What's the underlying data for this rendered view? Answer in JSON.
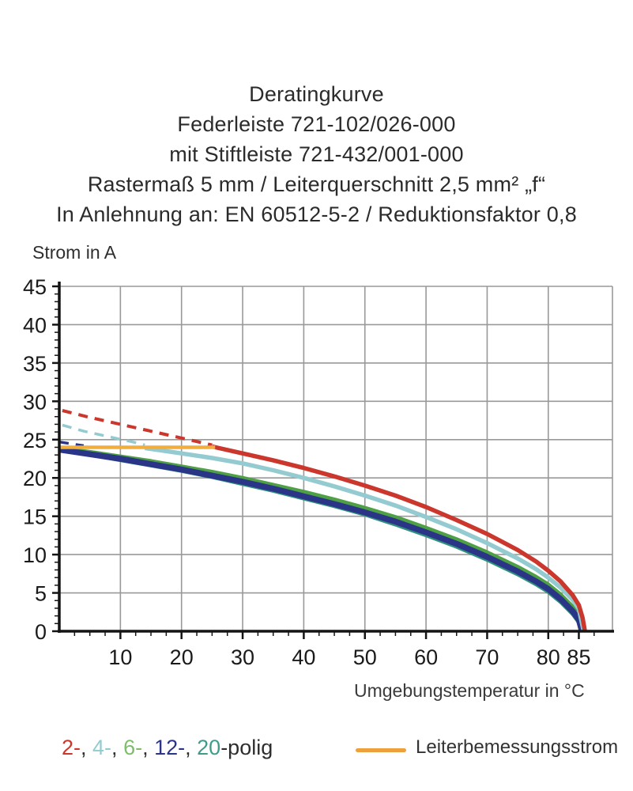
{
  "title": {
    "lines": [
      "Deratingkurve",
      "Federleiste 721-102/026-000",
      "mit Stiftleiste 721-432/001-000",
      "Rastermaß 5 mm / Leiterquerschnitt 2,5 mm² „f“",
      "In Anlehnung an: EN 60512-5-2 / Reduktionsfaktor 0,8"
    ]
  },
  "chart_data": {
    "type": "line",
    "title": "Deratingkurve",
    "xlabel": "Umgebungstemperatur in °C",
    "ylabel": "Strom in A",
    "xlim": [
      0,
      90.5
    ],
    "ylim": [
      0,
      45
    ],
    "grid": true,
    "x_gridline_step": 10,
    "y_gridline_step": 5,
    "x_ticks_major": [
      10,
      20,
      30,
      40,
      50,
      60,
      70,
      80,
      85
    ],
    "x_minor_step": 2.5,
    "y_ticks": [
      0,
      5,
      10,
      15,
      20,
      25,
      30,
      35,
      40,
      45
    ],
    "y_minor_step": 1,
    "colors": {
      "grid": "#999999",
      "axis": "#141414",
      "red_2pole": "#cb372c",
      "cyan_4pole": "#93cbd1",
      "green_6pole": "#4fa045",
      "navy_12pole": "#2a3588",
      "teal_20pole": "#2f917d",
      "orange_rated": "#f2ae3c"
    },
    "series": [
      {
        "name": "2-polig theoretisch",
        "color": "#cb372c",
        "width": 4,
        "dashed": true,
        "points": [
          [
            0.5,
            28.8
          ],
          [
            5,
            27.9
          ],
          [
            10,
            27.0
          ],
          [
            15,
            26.1
          ],
          [
            20,
            25.2
          ],
          [
            25,
            24.3
          ]
        ]
      },
      {
        "name": "4-polig theoretisch",
        "color": "#93cbd1",
        "width": 3.5,
        "dashed": true,
        "points": [
          [
            0.5,
            26.9
          ],
          [
            4,
            26.1
          ],
          [
            8,
            25.4
          ],
          [
            12,
            24.7
          ],
          [
            14,
            24.3
          ]
        ]
      },
      {
        "name": "12-polig theoretisch",
        "color": "#2a3588",
        "width": 3.5,
        "dashed": true,
        "points": [
          [
            0,
            24.7
          ],
          [
            4,
            24.2
          ]
        ]
      },
      {
        "name": "6-polig",
        "color": "#4fa045",
        "width": 5,
        "dashed": false,
        "points": [
          [
            0,
            23.9
          ],
          [
            5,
            23.4
          ],
          [
            10,
            22.8
          ],
          [
            15,
            22.2
          ],
          [
            20,
            21.5
          ],
          [
            25,
            20.8
          ],
          [
            30,
            20.0
          ],
          [
            35,
            19.1
          ],
          [
            40,
            18.2
          ],
          [
            45,
            17.2
          ],
          [
            50,
            16.1
          ],
          [
            55,
            14.9
          ],
          [
            60,
            13.5
          ],
          [
            65,
            12.0
          ],
          [
            70,
            10.3
          ],
          [
            75,
            8.4
          ],
          [
            78,
            7.1
          ],
          [
            80,
            6.1
          ],
          [
            82,
            4.8
          ],
          [
            84,
            3.2
          ],
          [
            85,
            2.1
          ],
          [
            85.6,
            0
          ]
        ]
      },
      {
        "name": "20-polig",
        "color": "#2f917d",
        "width": 4.5,
        "dashed": false,
        "points": [
          [
            0,
            23.6
          ],
          [
            5,
            23.0
          ],
          [
            10,
            22.3
          ],
          [
            15,
            21.6
          ],
          [
            20,
            20.9
          ],
          [
            25,
            20.1
          ],
          [
            30,
            19.2
          ],
          [
            35,
            18.3
          ],
          [
            40,
            17.3
          ],
          [
            45,
            16.3
          ],
          [
            50,
            15.2
          ],
          [
            55,
            13.9
          ],
          [
            60,
            12.5
          ],
          [
            65,
            11.0
          ],
          [
            70,
            9.3
          ],
          [
            75,
            7.4
          ],
          [
            78,
            6.1
          ],
          [
            80,
            5.1
          ],
          [
            82,
            3.8
          ],
          [
            84,
            2.2
          ],
          [
            85,
            1.1
          ],
          [
            85.4,
            0
          ]
        ]
      },
      {
        "name": "12-polig",
        "color": "#2a3588",
        "width": 7.5,
        "dashed": false,
        "points": [
          [
            0,
            23.7
          ],
          [
            5,
            23.1
          ],
          [
            10,
            22.5
          ],
          [
            15,
            21.8
          ],
          [
            20,
            21.1
          ],
          [
            25,
            20.3
          ],
          [
            30,
            19.5
          ],
          [
            35,
            18.6
          ],
          [
            40,
            17.6
          ],
          [
            45,
            16.6
          ],
          [
            50,
            15.5
          ],
          [
            55,
            14.3
          ],
          [
            60,
            12.9
          ],
          [
            65,
            11.4
          ],
          [
            70,
            9.7
          ],
          [
            75,
            7.8
          ],
          [
            78,
            6.5
          ],
          [
            80,
            5.5
          ],
          [
            82,
            4.2
          ],
          [
            84,
            2.6
          ],
          [
            85,
            1.5
          ],
          [
            85.5,
            0
          ]
        ]
      },
      {
        "name": "4-polig",
        "color": "#93cbd1",
        "width": 5.5,
        "dashed": false,
        "points": [
          [
            14,
            23.9
          ],
          [
            20,
            23.2
          ],
          [
            25,
            22.6
          ],
          [
            30,
            21.9
          ],
          [
            35,
            21.0
          ],
          [
            40,
            20.0
          ],
          [
            45,
            18.9
          ],
          [
            50,
            17.7
          ],
          [
            55,
            16.4
          ],
          [
            60,
            14.9
          ],
          [
            65,
            13.3
          ],
          [
            70,
            11.5
          ],
          [
            75,
            9.5
          ],
          [
            78,
            8.1
          ],
          [
            80,
            7.0
          ],
          [
            82,
            5.7
          ],
          [
            84,
            4.1
          ],
          [
            85,
            2.9
          ],
          [
            85.8,
            0
          ]
        ]
      },
      {
        "name": "2-polig",
        "color": "#cb372c",
        "width": 5.5,
        "dashed": false,
        "points": [
          [
            25,
            24.1
          ],
          [
            30,
            23.2
          ],
          [
            35,
            22.3
          ],
          [
            40,
            21.3
          ],
          [
            45,
            20.2
          ],
          [
            50,
            19.0
          ],
          [
            55,
            17.7
          ],
          [
            60,
            16.2
          ],
          [
            65,
            14.5
          ],
          [
            70,
            12.7
          ],
          [
            75,
            10.6
          ],
          [
            78,
            9.1
          ],
          [
            80,
            7.9
          ],
          [
            82,
            6.5
          ],
          [
            84,
            4.7
          ],
          [
            85,
            3.4
          ],
          [
            85.6,
            1.8
          ],
          [
            86,
            0
          ]
        ]
      },
      {
        "name": "Leiterbemessungsstrom",
        "color": "#f2ae3c",
        "width": 4.5,
        "dashed": false,
        "points": [
          [
            0,
            24
          ],
          [
            25.5,
            24
          ]
        ]
      }
    ]
  },
  "legend": {
    "poles": [
      {
        "label": "2-",
        "color": "#cb372c"
      },
      {
        "label": "4-",
        "color": "#93cbd1"
      },
      {
        "label": "6-",
        "color": "#7fbc6c"
      },
      {
        "label": "12-",
        "color": "#2a3588"
      },
      {
        "label": "20",
        "color": "#3e9c8c"
      }
    ],
    "separator": ", ",
    "suffix": "-polig",
    "suffix_color": "#2d2d2d",
    "rated_current_label": "Leiterbemessungsstrom",
    "rated_current_color": "#eda03c"
  }
}
